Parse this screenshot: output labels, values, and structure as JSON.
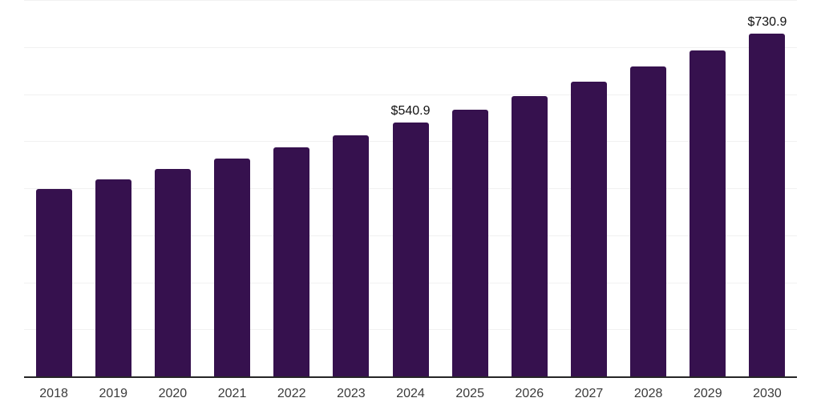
{
  "chart_data": {
    "type": "bar",
    "title": "",
    "xlabel": "",
    "ylabel": "",
    "categories": [
      "2018",
      "2019",
      "2020",
      "2021",
      "2022",
      "2023",
      "2024",
      "2025",
      "2026",
      "2027",
      "2028",
      "2029",
      "2030"
    ],
    "values": [
      400.4,
      421.0,
      442.6,
      465.4,
      489.3,
      514.4,
      540.9,
      568.7,
      597.9,
      628.6,
      660.9,
      694.9,
      730.9
    ],
    "data_labels": [
      "",
      "",
      "",
      "",
      "",
      "",
      "$540.9",
      "",
      "",
      "",
      "",
      "",
      "$730.9"
    ],
    "ylim": [
      0,
      800
    ],
    "gridline_interval": 100,
    "grid": true,
    "legend": false,
    "colors": {
      "bar": "#36114E",
      "gridline": "#f1f1f1",
      "axis_line": "#262626",
      "tick_label": "#3a3a3a",
      "data_label": "#111111",
      "background": "#ffffff"
    }
  }
}
